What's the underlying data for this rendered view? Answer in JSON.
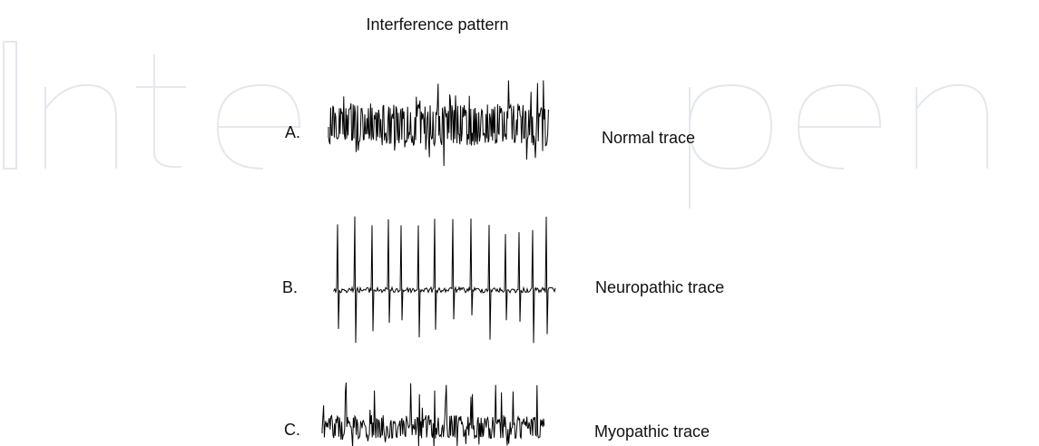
{
  "title": "Interference pattern",
  "traces": [
    {
      "letter": "A.",
      "label": "Normal trace"
    },
    {
      "letter": "B.",
      "label": "Neuropathic trace"
    },
    {
      "letter": "C.",
      "label": "Myopathic trace"
    }
  ]
}
